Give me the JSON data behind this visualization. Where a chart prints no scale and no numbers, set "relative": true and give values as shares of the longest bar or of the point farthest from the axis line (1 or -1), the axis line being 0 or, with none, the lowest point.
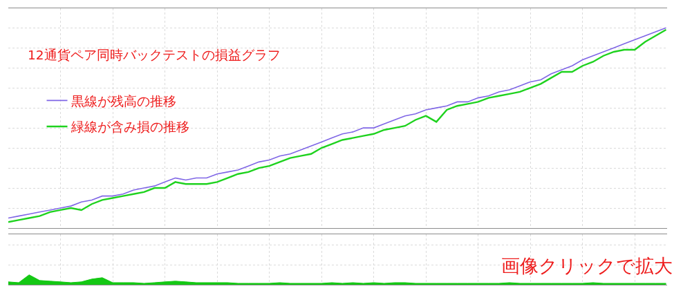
{
  "chart_data": [
    {
      "type": "line",
      "title": "12通貨ペア同時バックテストの損益グラフ",
      "relative": true,
      "grid": true,
      "legend": "top left",
      "categories": [
        null,
        null,
        null,
        null,
        null,
        null,
        null,
        null,
        null,
        null,
        null,
        null,
        null,
        null,
        null,
        null,
        null,
        null,
        null,
        null,
        null,
        null,
        null,
        null,
        null,
        null,
        null,
        null,
        null,
        null,
        null,
        null,
        null,
        null,
        null,
        null,
        null,
        null,
        null,
        null,
        null,
        null,
        null,
        null,
        null,
        null,
        null,
        null,
        null,
        null,
        null,
        null,
        null,
        null,
        null,
        null,
        null,
        null,
        null,
        null,
        null,
        null,
        null,
        null
      ],
      "series": [
        {
          "name": "黒線が残高の推移",
          "color": "#7f66e6",
          "values": [
            0.05,
            0.06,
            0.07,
            0.08,
            0.09,
            0.1,
            0.11,
            0.13,
            0.14,
            0.16,
            0.16,
            0.17,
            0.19,
            0.2,
            0.21,
            0.23,
            0.25,
            0.24,
            0.25,
            0.25,
            0.27,
            0.28,
            0.29,
            0.31,
            0.33,
            0.34,
            0.36,
            0.37,
            0.39,
            0.41,
            0.43,
            0.45,
            0.47,
            0.48,
            0.5,
            0.5,
            0.52,
            0.54,
            0.56,
            0.57,
            0.59,
            0.6,
            0.61,
            0.63,
            0.63,
            0.65,
            0.66,
            0.68,
            0.69,
            0.71,
            0.73,
            0.74,
            0.77,
            0.79,
            0.81,
            0.84,
            0.86,
            0.88,
            0.9,
            0.92,
            0.94,
            0.96,
            0.98,
            1.0
          ]
        },
        {
          "name": "緑線が含み損の推移",
          "color": "#1ed21e",
          "values": [
            0.03,
            0.04,
            0.05,
            0.06,
            0.08,
            0.09,
            0.1,
            0.09,
            0.12,
            0.14,
            0.15,
            0.16,
            0.17,
            0.18,
            0.2,
            0.2,
            0.23,
            0.22,
            0.22,
            0.22,
            0.23,
            0.25,
            0.27,
            0.28,
            0.3,
            0.31,
            0.33,
            0.35,
            0.36,
            0.37,
            0.4,
            0.42,
            0.44,
            0.45,
            0.46,
            0.47,
            0.49,
            0.5,
            0.51,
            0.54,
            0.56,
            0.53,
            0.59,
            0.61,
            0.62,
            0.63,
            0.65,
            0.66,
            0.67,
            0.68,
            0.7,
            0.72,
            0.75,
            0.78,
            0.78,
            0.81,
            0.83,
            0.86,
            0.88,
            0.89,
            0.89,
            0.93,
            0.96,
            0.99
          ]
        }
      ]
    },
    {
      "type": "area",
      "relative": true,
      "grid": true,
      "color": "#14c814",
      "annotations": [
        "画像クリックで拡大"
      ],
      "categories": [
        null,
        null,
        null,
        null,
        null,
        null,
        null,
        null,
        null,
        null,
        null,
        null,
        null,
        null,
        null,
        null,
        null,
        null,
        null,
        null,
        null,
        null,
        null,
        null,
        null,
        null,
        null,
        null,
        null,
        null,
        null,
        null,
        null,
        null,
        null,
        null,
        null,
        null,
        null,
        null,
        null,
        null,
        null,
        null,
        null,
        null,
        null,
        null,
        null,
        null,
        null,
        null,
        null,
        null,
        null,
        null,
        null,
        null,
        null,
        null,
        null,
        null,
        null,
        null
      ],
      "values": [
        0.29,
        0.21,
        1.0,
        0.43,
        0.36,
        0.29,
        0.21,
        0.29,
        0.57,
        0.71,
        0.21,
        0.21,
        0.21,
        0.14,
        0.21,
        0.29,
        0.36,
        0.29,
        0.21,
        0.21,
        0.21,
        0.21,
        0.14,
        0.14,
        0.14,
        0.14,
        0.21,
        0.14,
        0.14,
        0.14,
        0.14,
        0.21,
        0.14,
        0.21,
        0.14,
        0.21,
        0.14,
        0.21,
        0.21,
        0.14,
        0.14,
        0.14,
        0.14,
        0.14,
        0.14,
        0.14,
        0.14,
        0.14,
        0.21,
        0.14,
        0.14,
        0.14,
        0.14,
        0.14,
        0.14,
        0.14,
        0.21,
        0.14,
        0.14,
        0.14,
        0.14,
        0.14,
        0.14,
        0.14
      ]
    }
  ]
}
